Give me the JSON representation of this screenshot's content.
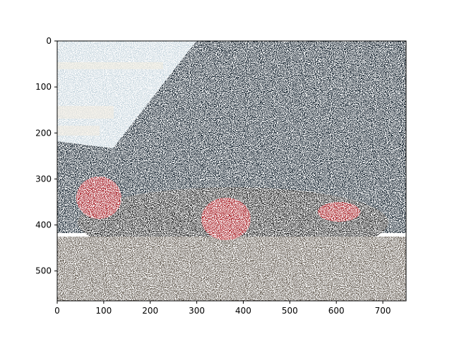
{
  "image": {
    "width": 750,
    "height": 565,
    "description_colors": {
      "sky": "#f2eee6",
      "sky_blue_tint": "#b8cbd6",
      "foliage_dark": "#0b1218",
      "car_red": "#c0202a",
      "ground": "#8a8278"
    }
  },
  "axes": {
    "x_ticks": [
      "0",
      "100",
      "200",
      "300",
      "400",
      "500",
      "600",
      "700"
    ],
    "y_ticks": [
      "0",
      "100",
      "200",
      "300",
      "400",
      "500"
    ],
    "xlim": [
      0,
      750
    ],
    "ylim": [
      565,
      0
    ]
  }
}
